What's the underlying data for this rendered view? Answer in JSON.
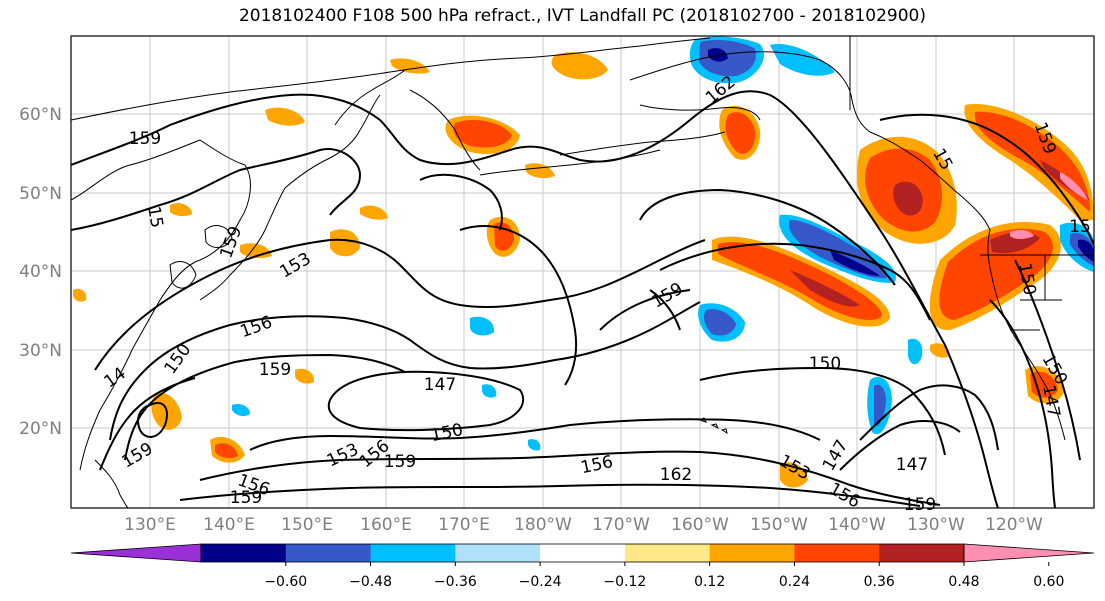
{
  "title": "2018102400 F108 500 hPa refract., IVT Landfall PC (2018102700 - 2018102900)",
  "lat_ticks": [
    "60°N",
    "50°N",
    "40°N",
    "30°N",
    "20°N"
  ],
  "lon_ticks": [
    "130°E",
    "140°E",
    "150°E",
    "160°E",
    "170°E",
    "180°W",
    "170°W",
    "160°W",
    "150°W",
    "140°W",
    "130°W",
    "120°W"
  ],
  "colorbar": {
    "colors": [
      "#9b30d9",
      "#00008b",
      "#3658c8",
      "#00bfff",
      "#b0e0fa",
      "#ffffff",
      "#ffe88a",
      "#ffa500",
      "#ff4500",
      "#b22222",
      "#ff8fb0"
    ],
    "tick_labels": [
      "−0.60",
      "−0.48",
      "−0.36",
      "−0.24",
      "−0.12",
      "0.12",
      "0.24",
      "0.36",
      "0.48",
      "0.60"
    ]
  },
  "contour_labels": [
    "159",
    "162",
    "159",
    "153",
    "159",
    "156",
    "159",
    "150",
    "147",
    "150",
    "153",
    "156",
    "159",
    "156",
    "162",
    "150",
    "153",
    "147",
    "147",
    "159",
    "156",
    "150",
    "147",
    "14",
    "159",
    "15",
    "159",
    "156",
    "159",
    "15",
    "156",
    "15",
    "150",
    "159"
  ]
}
